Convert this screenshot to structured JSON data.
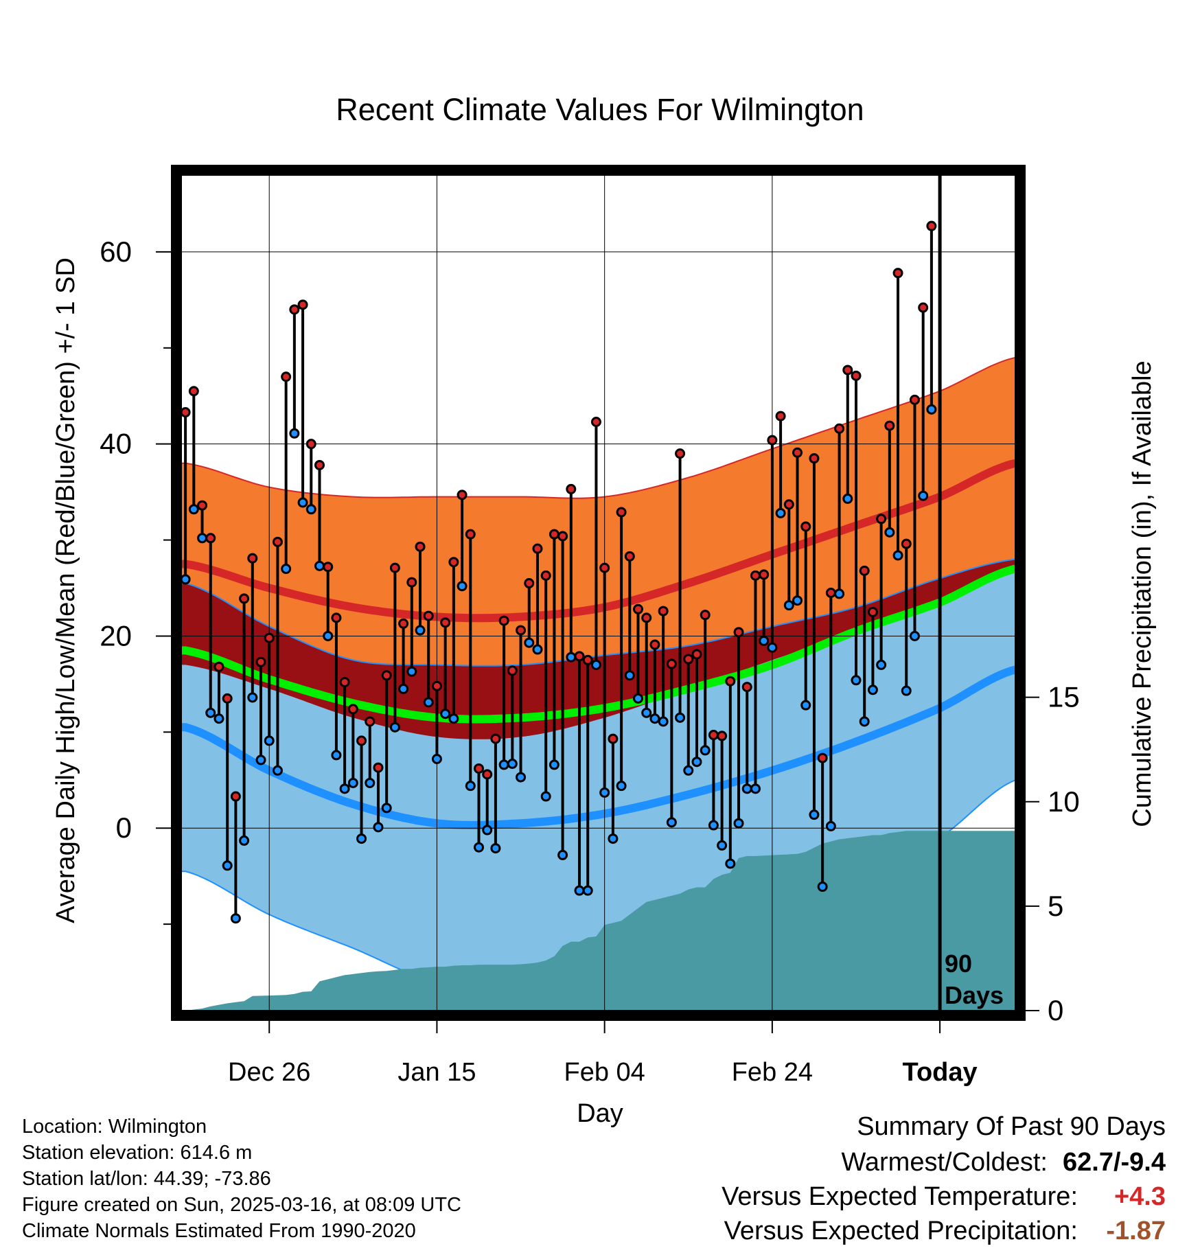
{
  "chart_data": {
    "type": "line",
    "title": "Recent Climate Values For Wilmington",
    "xlabel": "Day",
    "ylabel": "Average Daily High/Low/Mean (Red/Blue/Green) +/- 1 SD",
    "y2label": "Cumulative Precipitation (in), If Available",
    "ylim": [
      -19,
      68
    ],
    "y2lim": [
      0,
      40
    ],
    "y_ticks": [
      "0",
      "20",
      "40",
      "60"
    ],
    "y_tick_values": [
      0,
      20,
      40,
      60
    ],
    "y2_ticks": [
      "0",
      "5",
      "10",
      "15"
    ],
    "y2_tick_values": [
      0,
      5,
      10,
      15
    ],
    "x_ticks": [
      "Dec 26",
      "Jan 15",
      "Feb 04",
      "Feb 24",
      "Today"
    ],
    "x_tick_days": [
      10,
      30,
      50,
      70,
      90
    ],
    "xlim": [
      -0.5,
      99
    ],
    "today_label": "90\nDays",
    "colors": {
      "high_band": "#f47a2e",
      "high_line": "#d62728",
      "low_band": "#82c0e6",
      "low_line": "#1e90ff",
      "overlap": "#981013",
      "mean_line": "#00ee00",
      "precip": "#4a9aa4",
      "high_dot": "#d62728",
      "low_dot": "#1e90ff"
    },
    "normals": {
      "days": [
        0,
        10,
        20,
        30,
        40,
        50,
        60,
        70,
        80,
        90,
        99
      ],
      "high_mean": [
        27.5,
        25.0,
        23.0,
        22.0,
        22.0,
        23.0,
        25.5,
        28.5,
        31.5,
        34.5,
        38.0
      ],
      "high_sd": [
        10.5,
        10.5,
        11.5,
        12.5,
        12.5,
        11.5,
        11.0,
        11.0,
        11.0,
        11.0,
        11.0
      ],
      "low_mean": [
        10.5,
        6.0,
        2.5,
        0.5,
        0.5,
        1.5,
        3.5,
        6.0,
        9.0,
        12.5,
        16.5
      ],
      "low_sd": [
        15.0,
        15.0,
        15.0,
        16.5,
        16.5,
        16.5,
        15.5,
        15.0,
        14.0,
        13.5,
        11.5
      ],
      "mean": [
        18.5,
        15.5,
        13.0,
        11.5,
        11.5,
        12.5,
        14.5,
        17.0,
        20.5,
        23.5,
        27.0
      ]
    },
    "series": [
      {
        "name": "High",
        "values": [
          43.3,
          45.5,
          33.6,
          30.2,
          16.8,
          13.5,
          3.3,
          23.9,
          28.1,
          17.3,
          19.8,
          29.8,
          47.0,
          54.0,
          54.5,
          40.0,
          37.8,
          27.2,
          21.9,
          15.2,
          12.4,
          9.1,
          11.1,
          6.3,
          15.9,
          27.1,
          21.3,
          25.6,
          29.3,
          22.1,
          14.8,
          21.4,
          27.7,
          34.7,
          30.6,
          6.2,
          5.6,
          9.3,
          21.6,
          16.4,
          20.6,
          25.5,
          29.1,
          26.3,
          30.6,
          30.4,
          35.3,
          17.9,
          17.5,
          42.3,
          27.1,
          9.3,
          32.9,
          28.3,
          22.8,
          21.9,
          19.1,
          22.6,
          17.1,
          39.0,
          17.6,
          18.1,
          22.2,
          9.7,
          9.6,
          15.3,
          20.4,
          14.7,
          26.3,
          26.4,
          40.4,
          42.9,
          33.7,
          39.1,
          31.4,
          38.5,
          7.3,
          24.5,
          41.6,
          47.7,
          47.1,
          26.8,
          22.5,
          32.2,
          41.9,
          57.8,
          29.6,
          44.6,
          54.2,
          62.7
        ]
      },
      {
        "name": "Low",
        "values": [
          25.9,
          33.2,
          30.2,
          12.0,
          11.4,
          -3.9,
          -9.4,
          -1.3,
          13.6,
          7.1,
          9.1,
          6.0,
          27.0,
          41.1,
          33.9,
          33.2,
          27.3,
          20.0,
          7.6,
          4.1,
          4.7,
          -1.1,
          4.7,
          0.1,
          2.1,
          10.5,
          14.5,
          16.3,
          20.6,
          13.1,
          7.2,
          11.9,
          11.4,
          25.2,
          4.4,
          -2.0,
          -0.2,
          -2.1,
          6.6,
          6.7,
          5.3,
          19.3,
          18.6,
          3.3,
          6.6,
          -2.8,
          17.8,
          -6.5,
          -6.5,
          17.0,
          3.7,
          -1.1,
          4.4,
          15.9,
          13.5,
          12.0,
          11.4,
          11.1,
          0.6,
          11.5,
          6.0,
          6.9,
          8.1,
          0.3,
          -1.8,
          -3.7,
          0.5,
          4.1,
          4.1,
          19.5,
          18.8,
          32.8,
          23.2,
          23.7,
          12.8,
          1.4,
          -6.1,
          0.2,
          24.4,
          34.3,
          15.4,
          11.1,
          14.4,
          17.0,
          30.8,
          28.4,
          14.3,
          20.0,
          34.6,
          43.6
        ]
      },
      {
        "name": "Cumulative Precipitation",
        "days": [
          0,
          2,
          3,
          5,
          6,
          7,
          8,
          10,
          12,
          13,
          14,
          15,
          16,
          17,
          18,
          19,
          20,
          21,
          22,
          23,
          24,
          25,
          26,
          27,
          28,
          29,
          30,
          31,
          32,
          33,
          34,
          35,
          36,
          37,
          38,
          39,
          40,
          41,
          42,
          43,
          44,
          45,
          46,
          47,
          48,
          49,
          50,
          51,
          52,
          53,
          54,
          55,
          56,
          57,
          58,
          59,
          60,
          61,
          62,
          63,
          64,
          65,
          66,
          67,
          68,
          69,
          70,
          71,
          72,
          73,
          74,
          75,
          76,
          77,
          78,
          79,
          80,
          81,
          82,
          83,
          84,
          85,
          86,
          87,
          88,
          89,
          90,
          91,
          92,
          93,
          94,
          95,
          96,
          97,
          98,
          99
        ],
        "values": [
          0.0,
          0.1,
          0.2,
          0.35,
          0.4,
          0.45,
          0.7,
          0.72,
          0.75,
          0.8,
          0.9,
          0.92,
          1.4,
          1.5,
          1.6,
          1.7,
          1.75,
          1.8,
          1.85,
          1.88,
          1.9,
          1.95,
          2.0,
          2.0,
          2.05,
          2.07,
          2.1,
          2.1,
          2.15,
          2.17,
          2.17,
          2.2,
          2.2,
          2.2,
          2.2,
          2.2,
          2.22,
          2.25,
          2.3,
          2.4,
          2.6,
          3.1,
          3.3,
          3.3,
          3.5,
          3.55,
          4.1,
          4.2,
          4.3,
          4.6,
          4.9,
          5.2,
          5.3,
          5.4,
          5.5,
          5.6,
          5.8,
          5.9,
          5.9,
          6.3,
          6.5,
          6.6,
          7.3,
          7.4,
          7.4,
          7.42,
          7.44,
          7.46,
          7.48,
          7.5,
          7.6,
          7.8,
          8.0,
          8.1,
          8.2,
          8.25,
          8.3,
          8.35,
          8.4,
          8.4,
          8.5,
          8.55,
          8.6,
          8.6,
          8.6,
          8.6,
          8.6,
          8.6,
          8.6,
          8.6,
          8.6,
          8.6,
          8.6,
          8.6,
          8.6,
          8.6
        ]
      }
    ]
  },
  "info": {
    "location": "Location: Wilmington",
    "elevation": "Station elevation: 614.6 m",
    "latlon": "Station lat/lon: 44.39; -73.86",
    "created": "Figure created on Sun, 2025-03-16, at 08:09 UTC",
    "normals": "Climate Normals Estimated From 1990-2020"
  },
  "summary": {
    "title": "Summary Of Past 90 Days",
    "warmest_label": "Warmest/Coldest:",
    "warmest_value": "62.7/-9.4",
    "temp_label": "Versus Expected Temperature:",
    "temp_value": "+4.3",
    "precip_label": "Versus Expected Precipitation:",
    "precip_value": "-1.87",
    "colors": {
      "warmest": "#000000",
      "temp": "#d62728",
      "precip": "#a0522d"
    }
  }
}
